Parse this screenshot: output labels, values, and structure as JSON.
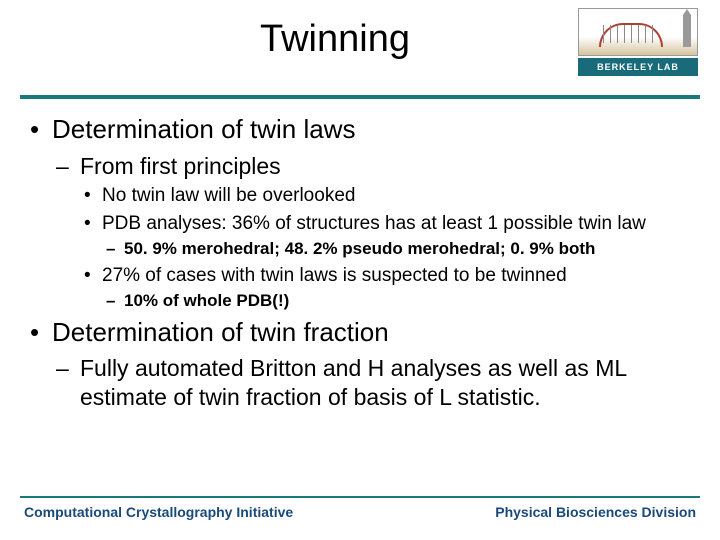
{
  "colors": {
    "rule": "#1a7a7a",
    "footer_text": "#1a4a7a",
    "logo_band": "#1a6b7a",
    "text": "#000000",
    "background": "#ffffff"
  },
  "header": {
    "title": "Twinning",
    "logo_label": "BERKELEY LAB"
  },
  "bullets": {
    "b1": "Determination of twin laws",
    "b1_1": "From first principles",
    "b1_1_1": "No twin law will be overlooked",
    "b1_1_2": "PDB analyses: 36% of structures has at least 1 possible twin law",
    "b1_1_2_1": "50. 9% merohedral; 48. 2% pseudo merohedral; 0. 9% both",
    "b1_1_3": "27% of cases with twin laws is suspected to be twinned",
    "b1_1_3_1": "10% of whole PDB(!)",
    "b2": "Determination of twin fraction",
    "b2_1_pre": "Fully automated ",
    "b2_1_rest": "Britton and H analyses as well as ML estimate of twin fraction of basis of L statistic."
  },
  "footer": {
    "left": "Computational Crystallography Initiative",
    "right": "Physical Biosciences Division"
  }
}
